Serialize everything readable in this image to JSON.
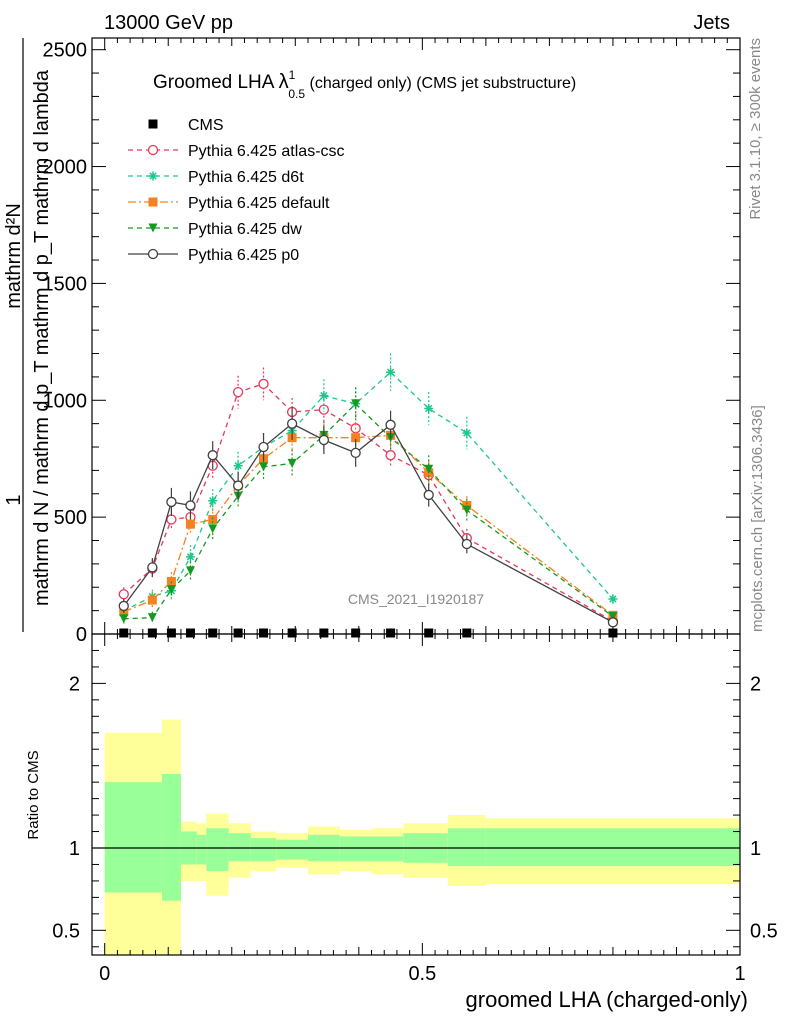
{
  "header": {
    "left": "13000 GeV pp",
    "right": "Jets"
  },
  "side_labels": {
    "rivet": "Rivet 3.1.10, ≥ 300k events",
    "mcplots": "mcplots.cern.ch [arXiv:1306.3436]"
  },
  "watermark": "CMS_2021_I1920187",
  "chart_data": {
    "type": "line",
    "title": "Groomed LHA λ¹₀.₅ (charged only) (CMS jet substructure)",
    "title_parts": {
      "main": "Groomed LHA ",
      "lambda": "λ",
      "sup": "1",
      "sub": "0.5",
      "rest": " (charged only) (CMS jet substructure)"
    },
    "ylabel_main": {
      "numerator_one": "1",
      "numerator_dn": "mathrm d²N",
      "denominator": "mathrm d N / mathrm d p_T mathrm d p_T mathrm d lambda"
    },
    "ylabel_main_lines": [
      "mathrm d N / mathrm d p",
      "mathrm d",
      "mathrm d p",
      "mathrm d lambda",
      "T",
      "T",
      "mathrm d²N"
    ],
    "ylabel_ratio": "Ratio to CMS",
    "xlabel": "groomed LHA (charged-only)",
    "xlim": [
      -0.02,
      1.0
    ],
    "ylim_main": [
      0,
      2550
    ],
    "ylim_ratio": [
      0.35,
      2.3
    ],
    "x_ticks": [
      "0",
      "0.5",
      "1"
    ],
    "y_ticks_main": [
      "0",
      "500",
      "1000",
      "1500",
      "2000",
      "2500"
    ],
    "y_ticks_ratio": [
      "0.5",
      "1",
      "2"
    ],
    "x": [
      0.03,
      0.075,
      0.105,
      0.135,
      0.17,
      0.21,
      0.25,
      0.295,
      0.345,
      0.395,
      0.45,
      0.51,
      0.57,
      0.8
    ],
    "series": [
      {
        "name": "CMS",
        "color": "#000000",
        "marker": "square",
        "dash": "none",
        "values": [
          0,
          0,
          0,
          0,
          0,
          0,
          0,
          0,
          0,
          0,
          0,
          0,
          0,
          0
        ],
        "errors": [
          0,
          0,
          0,
          0,
          0,
          0,
          0,
          0,
          0,
          0,
          0,
          0,
          0,
          0
        ]
      },
      {
        "name": "Pythia 6.425 atlas-csc",
        "color": "#e8385a",
        "marker": "circle-open",
        "dash": "5,4",
        "values": [
          170,
          280,
          490,
          500,
          720,
          1035,
          1070,
          950,
          960,
          880,
          765,
          680,
          410,
          55
        ],
        "errors": [
          30,
          40,
          40,
          50,
          60,
          70,
          70,
          60,
          60,
          60,
          50,
          50,
          40,
          10
        ]
      },
      {
        "name": "Pythia 6.425 d6t",
        "color": "#1cc88a",
        "marker": "star",
        "dash": "5,4",
        "values": [
          100,
          160,
          185,
          330,
          570,
          720,
          800,
          870,
          1020,
          985,
          1120,
          965,
          860,
          150
        ],
        "errors": [
          25,
          30,
          40,
          50,
          50,
          60,
          60,
          60,
          70,
          70,
          80,
          70,
          70,
          20
        ]
      },
      {
        "name": "Pythia 6.425 default",
        "color": "#f58220",
        "marker": "square-filled",
        "dash": "8,3,2,3",
        "values": [
          95,
          145,
          225,
          470,
          490,
          635,
          750,
          840,
          840,
          840,
          850,
          690,
          550,
          80
        ],
        "errors": [
          25,
          30,
          40,
          40,
          50,
          50,
          50,
          60,
          60,
          60,
          60,
          50,
          40,
          10
        ]
      },
      {
        "name": "Pythia 6.425 dw",
        "color": "#159a20",
        "marker": "triangle-down",
        "dash": "5,4",
        "values": [
          65,
          70,
          190,
          270,
          450,
          590,
          715,
          730,
          850,
          985,
          840,
          705,
          530,
          75
        ],
        "errors": [
          20,
          25,
          35,
          40,
          50,
          50,
          60,
          60,
          60,
          70,
          60,
          60,
          50,
          10
        ]
      },
      {
        "name": "Pythia 6.425 p0",
        "color": "#404040",
        "marker": "circle-open",
        "dash": "none",
        "values": [
          120,
          285,
          565,
          550,
          765,
          635,
          800,
          900,
          830,
          775,
          895,
          595,
          385,
          50
        ],
        "errors": [
          30,
          40,
          60,
          60,
          60,
          60,
          60,
          70,
          60,
          60,
          60,
          50,
          40,
          10
        ]
      }
    ],
    "ratio_bands": {
      "edges": [
        0.0,
        0.09,
        0.12,
        0.145,
        0.16,
        0.195,
        0.23,
        0.27,
        0.32,
        0.37,
        0.42,
        0.47,
        0.54,
        0.6,
        1.0
      ],
      "yellow_upper": [
        1.7,
        1.78,
        1.16,
        1.15,
        1.21,
        1.15,
        1.1,
        1.09,
        1.13,
        1.11,
        1.12,
        1.15,
        1.2,
        1.18
      ],
      "yellow_lower": [
        0.35,
        0.35,
        0.8,
        0.8,
        0.71,
        0.82,
        0.86,
        0.88,
        0.84,
        0.86,
        0.84,
        0.82,
        0.77,
        0.78
      ],
      "green_upper": [
        1.4,
        1.45,
        1.1,
        1.08,
        1.12,
        1.09,
        1.06,
        1.05,
        1.08,
        1.07,
        1.07,
        1.09,
        1.12,
        1.12
      ],
      "green_lower": [
        0.73,
        0.68,
        0.9,
        0.9,
        0.86,
        0.92,
        0.92,
        0.93,
        0.92,
        0.92,
        0.92,
        0.91,
        0.89,
        0.89
      ],
      "yellow_color": "#ffff99",
      "green_color": "#99ff99"
    }
  }
}
